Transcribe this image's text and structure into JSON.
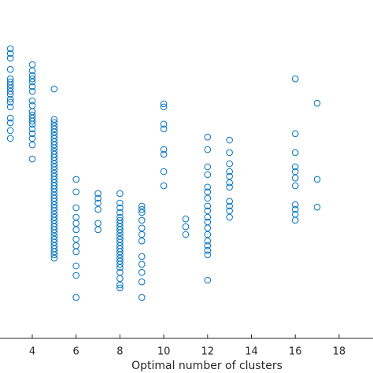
{
  "chart_data": {
    "type": "scatter",
    "x_label": "Optimal number of clusters",
    "xlim": [
      2,
      20
    ],
    "xticks": [
      4,
      6,
      8,
      10,
      12,
      14,
      16,
      18
    ],
    "ylim": [
      0,
      100
    ],
    "series": [
      {
        "color": "#0072bd",
        "x": [
          3,
          3,
          3,
          3,
          3,
          3,
          3,
          3,
          3,
          3,
          3,
          3,
          3,
          3,
          3,
          3,
          3,
          4,
          4,
          4,
          4,
          4,
          4,
          4,
          4,
          4,
          4,
          4,
          4,
          4,
          4,
          4,
          4,
          4,
          4,
          4,
          5,
          5,
          5,
          5,
          5,
          5,
          5,
          5,
          5,
          5,
          5,
          5,
          5,
          5,
          5,
          5,
          5,
          5,
          5,
          5,
          5,
          5,
          5,
          5,
          5,
          5,
          5,
          5,
          5,
          5,
          5,
          5,
          5,
          5,
          5,
          5,
          5,
          5,
          5,
          5,
          5,
          5,
          5,
          5,
          5,
          5,
          6,
          6,
          6,
          6,
          6,
          6,
          6,
          6,
          6,
          6,
          6,
          6,
          7,
          7,
          7,
          7,
          7,
          7,
          8,
          8,
          8,
          8,
          8,
          8,
          8,
          8,
          8,
          8,
          8,
          8,
          8,
          8,
          8,
          8,
          8,
          8,
          8,
          8,
          8,
          8,
          8,
          8,
          8,
          9,
          9,
          9,
          9,
          9,
          9,
          9,
          9,
          9,
          9,
          9,
          9,
          10,
          10,
          10,
          10,
          10,
          10,
          10,
          10,
          11,
          11,
          11,
          12,
          12,
          12,
          12,
          12,
          12,
          12,
          12,
          12,
          12,
          12,
          12,
          12,
          12,
          12,
          12,
          12,
          12,
          13,
          13,
          13,
          13,
          13,
          13,
          13,
          13,
          13,
          13,
          13,
          16,
          16,
          16,
          16,
          16,
          16,
          16,
          16,
          16,
          16,
          16,
          17,
          17,
          17
        ],
        "values": [
          85.6,
          84.2,
          82.8,
          79.5,
          76.7,
          75.8,
          74.9,
          74.0,
          73.0,
          72.1,
          70.7,
          69.8,
          68.4,
          65.1,
          63.7,
          61.4,
          59.1,
          80.9,
          79.1,
          77.7,
          76.7,
          75.8,
          74.4,
          73.0,
          70.2,
          68.8,
          67.0,
          66.0,
          65.1,
          64.2,
          63.3,
          61.9,
          60.5,
          59.1,
          57.2,
          53.0,
          73.7,
          64.7,
          63.8,
          62.8,
          61.9,
          61.0,
          60.0,
          59.1,
          58.1,
          57.2,
          56.3,
          55.3,
          54.4,
          53.5,
          52.6,
          51.6,
          50.7,
          49.8,
          48.8,
          47.9,
          47.0,
          46.0,
          45.1,
          44.2,
          43.3,
          42.3,
          41.4,
          40.5,
          39.5,
          38.6,
          37.7,
          36.7,
          35.8,
          34.9,
          33.9,
          33.0,
          32.1,
          31.2,
          30.2,
          29.3,
          28.4,
          27.4,
          26.5,
          25.6,
          24.7,
          23.7,
          47.0,
          43.3,
          38.6,
          35.8,
          34.0,
          32.1,
          29.3,
          27.4,
          25.6,
          21.4,
          18.6,
          12.1,
          42.8,
          41.4,
          40.0,
          38.1,
          34.0,
          32.1,
          42.8,
          40.0,
          38.6,
          37.2,
          35.8,
          34.9,
          34.0,
          33.0,
          32.1,
          31.2,
          30.2,
          29.3,
          28.4,
          27.4,
          26.5,
          25.6,
          24.7,
          23.7,
          22.8,
          21.9,
          20.9,
          19.5,
          17.7,
          15.8,
          14.9,
          39.1,
          38.1,
          37.2,
          34.9,
          32.6,
          30.7,
          28.8,
          24.2,
          21.9,
          19.5,
          16.7,
          12.1,
          69.3,
          68.4,
          63.3,
          61.9,
          55.8,
          54.4,
          49.3,
          45.1,
          35.3,
          33.0,
          30.7,
          59.5,
          55.8,
          50.7,
          48.4,
          44.7,
          43.3,
          41.4,
          39.1,
          37.7,
          35.8,
          34.4,
          32.6,
          30.7,
          28.8,
          27.4,
          26.0,
          24.7,
          17.2,
          58.6,
          54.9,
          51.6,
          49.3,
          47.9,
          46.0,
          44.7,
          40.5,
          39.1,
          37.7,
          35.8,
          76.7,
          60.5,
          54.9,
          50.7,
          49.3,
          47.4,
          45.1,
          39.5,
          38.1,
          36.7,
          34.9,
          69.5,
          47.0,
          38.8
        ]
      }
    ]
  }
}
